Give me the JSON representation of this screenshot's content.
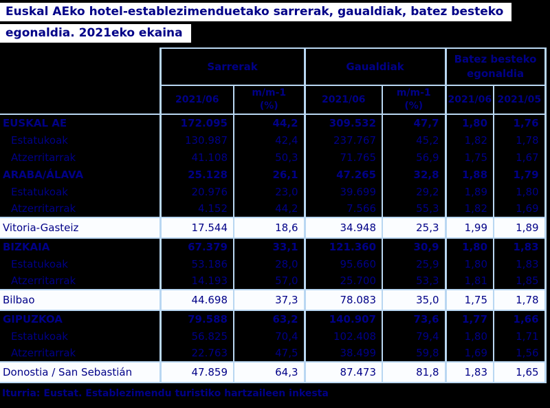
{
  "title": {
    "line1": "Euskal AEko hotel-establezimenduetako sarrerak, gaualdiak, batez besteko",
    "line2": "egonaldia. 2021eko ekaina"
  },
  "colors": {
    "text_navy": "#000087",
    "border_light_blue": "#B9D7F2",
    "row_dark_background": "#000000",
    "row_highlight_background": "#FBFDFF"
  },
  "table": {
    "group_headers": [
      {
        "label": "Sarrerak",
        "colspan": 2
      },
      {
        "label": "Gaualdiak",
        "colspan": 2
      },
      {
        "label": "Batez besteko egonaldia",
        "colspan": 2
      }
    ],
    "sub_headers": [
      "2021/06",
      "m/m-1\n(%)",
      "2021/06",
      "m/m-1\n(%)",
      "2021/06",
      "2021/05"
    ],
    "rows": [
      {
        "label": "EUSKAL AE",
        "style": "total",
        "values": [
          "172.095",
          "44,2",
          "309.532",
          "47,7",
          "1,80",
          "1,76"
        ]
      },
      {
        "label": "Estatukoak",
        "style": "sub",
        "values": [
          "130.987",
          "42,4",
          "237.767",
          "45,2",
          "1,82",
          "1,78"
        ]
      },
      {
        "label": "Atzerritarrak",
        "style": "sub",
        "values": [
          "41.108",
          "50,3",
          "71.765",
          "56,9",
          "1,75",
          "1,67"
        ]
      },
      {
        "label": "ARABA/ÁLAVA",
        "style": "total",
        "values": [
          "25.128",
          "26,1",
          "47.265",
          "32,8",
          "1,88",
          "1,79"
        ]
      },
      {
        "label": "Estatukoak",
        "style": "sub",
        "values": [
          "20.976",
          "23,0",
          "39.699",
          "29,2",
          "1,89",
          "1,80"
        ]
      },
      {
        "label": "Atzerritarrak",
        "style": "sub",
        "values": [
          "4.152",
          "44,2",
          "7.566",
          "55,3",
          "1,82",
          "1,69"
        ]
      },
      {
        "label": "Vitoria-Gasteiz",
        "style": "city",
        "values": [
          "17.544",
          "18,6",
          "34.948",
          "25,3",
          "1,99",
          "1,89"
        ]
      },
      {
        "label": "BIZKAIA",
        "style": "total",
        "values": [
          "67.379",
          "33,1",
          "121.360",
          "30,9",
          "1,80",
          "1,83"
        ]
      },
      {
        "label": "Estatukoak",
        "style": "sub",
        "values": [
          "53.186",
          "28,0",
          "95.660",
          "25,9",
          "1,80",
          "1,83"
        ]
      },
      {
        "label": "Atzerritarrak",
        "style": "sub",
        "values": [
          "14.193",
          "57,0",
          "25.700",
          "53,3",
          "1,81",
          "1,85"
        ]
      },
      {
        "label": "Bilbao",
        "style": "city",
        "values": [
          "44.698",
          "37,3",
          "78.083",
          "35,0",
          "1,75",
          "1,78"
        ]
      },
      {
        "label": "GIPUZKOA",
        "style": "total",
        "values": [
          "79.588",
          "63,2",
          "140.907",
          "73,6",
          "1,77",
          "1,66"
        ]
      },
      {
        "label": "Estatukoak",
        "style": "sub",
        "values": [
          "56.825",
          "70,4",
          "102.408",
          "79,4",
          "1,80",
          "1,71"
        ]
      },
      {
        "label": "Atzerritarrak",
        "style": "sub",
        "values": [
          "22.763",
          "47,5",
          "38.499",
          "59,8",
          "1,69",
          "1,56"
        ]
      },
      {
        "label": "Donostia / San Sebastián",
        "style": "city",
        "values": [
          "47.859",
          "64,3",
          "87.473",
          "81,8",
          "1,83",
          "1,65"
        ]
      }
    ]
  },
  "footer": {
    "source": "Iturria: Eustat. Establezimendu turistiko hartzaileen inkesta"
  }
}
